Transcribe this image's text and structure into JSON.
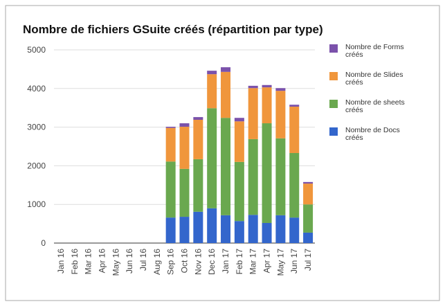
{
  "chart_data": {
    "type": "bar",
    "stacked": true,
    "title": "Nombre de fichiers GSuite créés (répartition par type)",
    "categories": [
      "Jan 16",
      "Feb 16",
      "Mar 16",
      "Apr 16",
      "May 16",
      "Jun 16",
      "Jul 16",
      "Aug 16",
      "Sep 16",
      "Oct 16",
      "Nov 16",
      "Dec 16",
      "Jan 17",
      "Feb 17",
      "Mar 17",
      "Apr 17",
      "May 17",
      "Jun 17",
      "Jul 17"
    ],
    "series": [
      {
        "name": "Nombre de Docs créés",
        "color": "#3366cc",
        "values": [
          0,
          0,
          0,
          0,
          0,
          0,
          0,
          0,
          660,
          680,
          810,
          900,
          720,
          570,
          730,
          520,
          720,
          660,
          270
        ]
      },
      {
        "name": "Nombre de sheets créés",
        "color": "#6aa84f",
        "values": [
          0,
          0,
          0,
          0,
          0,
          0,
          0,
          0,
          1450,
          1240,
          1360,
          2590,
          2520,
          1530,
          1960,
          2580,
          1990,
          1670,
          730
        ]
      },
      {
        "name": "Nombre de Slides créés",
        "color": "#f0963c",
        "values": [
          0,
          0,
          0,
          0,
          0,
          0,
          0,
          0,
          870,
          1090,
          1020,
          880,
          1190,
          1050,
          1320,
          930,
          1230,
          1200,
          540
        ]
      },
      {
        "name": "Nombre de Forms créés",
        "color": "#7b52ab",
        "values": [
          0,
          0,
          0,
          0,
          0,
          0,
          0,
          0,
          30,
          90,
          70,
          90,
          120,
          90,
          60,
          60,
          70,
          50,
          40
        ]
      }
    ],
    "ylim": [
      0,
      5000
    ],
    "yticks": [
      0,
      1000,
      2000,
      3000,
      4000,
      5000
    ],
    "grid": true,
    "legend": "right"
  }
}
